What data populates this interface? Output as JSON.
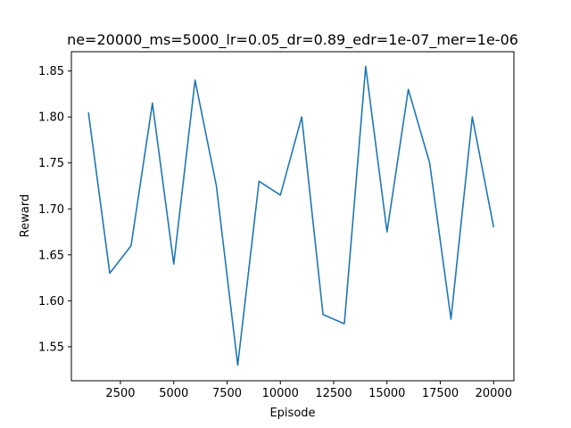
{
  "chart_data": {
    "type": "line",
    "title": "ne=20000_ms=5000_lr=0.05_dr=0.89_edr=1e-07_mer=1e-06",
    "xlabel": "Episode",
    "ylabel": "Reward",
    "xlim": [
      200,
      20950
    ],
    "ylim": [
      1.513,
      1.871
    ],
    "grid": false,
    "legend": "none",
    "x_ticks": [
      2500,
      5000,
      7500,
      10000,
      12500,
      15000,
      17500,
      20000
    ],
    "x_tick_labels": [
      "2500",
      "5000",
      "7500",
      "10000",
      "12500",
      "15000",
      "17500",
      "20000"
    ],
    "y_ticks": [
      1.55,
      1.6,
      1.65,
      1.7,
      1.75,
      1.8,
      1.85
    ],
    "y_tick_labels": [
      "1.55",
      "1.60",
      "1.65",
      "1.70",
      "1.75",
      "1.80",
      "1.85"
    ],
    "series": [
      {
        "color": "#1f77b4",
        "x": [
          1000,
          2000,
          3000,
          4000,
          5000,
          6000,
          7000,
          8000,
          9000,
          10000,
          11000,
          12000,
          13000,
          14000,
          15000,
          16000,
          17000,
          18000,
          19000,
          20000
        ],
        "y": [
          1.805,
          1.63,
          1.66,
          1.815,
          1.64,
          1.84,
          1.725,
          1.53,
          1.73,
          1.715,
          1.8,
          1.585,
          1.575,
          1.855,
          1.675,
          1.83,
          1.75,
          1.58,
          1.8,
          1.68
        ]
      }
    ]
  }
}
